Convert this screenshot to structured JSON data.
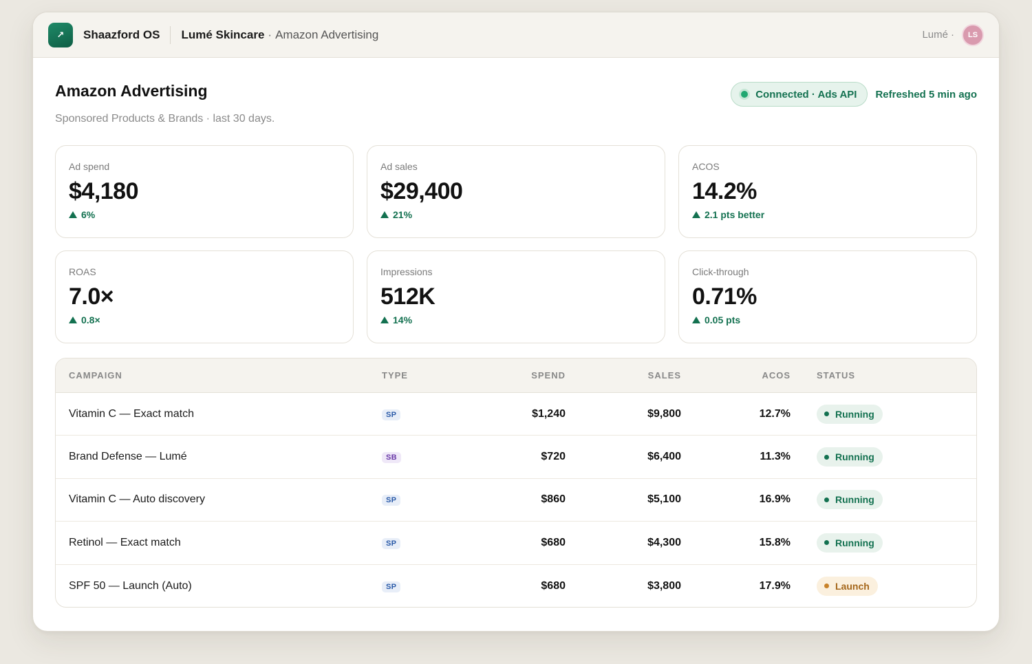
{
  "app": {
    "logo_glyph": "↗",
    "name": "Shaazford OS"
  },
  "breadcrumb": {
    "client": "Lumé Skincare",
    "separator": "·",
    "page": "Amazon Advertising"
  },
  "user": {
    "org": "Lumé",
    "org_separator": "·",
    "avatar_initials": "LS",
    "avatar_color": "#d99aae"
  },
  "header": {
    "title": "Amazon Advertising",
    "subtitle": "Sponsored Products & Brands · last 30 days."
  },
  "connection": {
    "status": "Connected · Ads API",
    "refreshed": "Refreshed 5 min ago",
    "accent": "#137150"
  },
  "metrics": [
    {
      "label": "Ad spend",
      "value": "$4,180",
      "delta": "6%",
      "direction": "up"
    },
    {
      "label": "Ad sales",
      "value": "$29,400",
      "delta": "21%",
      "direction": "up"
    },
    {
      "label": "ACOS",
      "value": "14.2%",
      "delta": "2.1 pts better",
      "direction": "up"
    },
    {
      "label": "ROAS",
      "value": "7.0×",
      "delta": "0.8×",
      "direction": "up"
    },
    {
      "label": "Impressions",
      "value": "512K",
      "delta": "14%",
      "direction": "up"
    },
    {
      "label": "Click-through",
      "value": "0.71%",
      "delta": "0.05 pts",
      "direction": "up"
    }
  ],
  "table": {
    "columns": [
      "CAMPAIGN",
      "TYPE",
      "SPEND",
      "SALES",
      "ACOS",
      "STATUS"
    ],
    "rows": [
      {
        "campaign": "Vitamin C — Exact match",
        "type": "SP",
        "spend": "$1,240",
        "sales": "$9,800",
        "acos": "12.7%",
        "status": "Running"
      },
      {
        "campaign": "Brand Defense — Lumé",
        "type": "SB",
        "spend": "$720",
        "sales": "$6,400",
        "acos": "11.3%",
        "status": "Running"
      },
      {
        "campaign": "Vitamin C — Auto discovery",
        "type": "SP",
        "spend": "$860",
        "sales": "$5,100",
        "acos": "16.9%",
        "status": "Running"
      },
      {
        "campaign": "Retinol — Exact match",
        "type": "SP",
        "spend": "$680",
        "sales": "$4,300",
        "acos": "15.8%",
        "status": "Running"
      },
      {
        "campaign": "SPF 50 — Launch (Auto)",
        "type": "SP",
        "spend": "$680",
        "sales": "$3,800",
        "acos": "17.9%",
        "status": "Launch"
      }
    ]
  }
}
